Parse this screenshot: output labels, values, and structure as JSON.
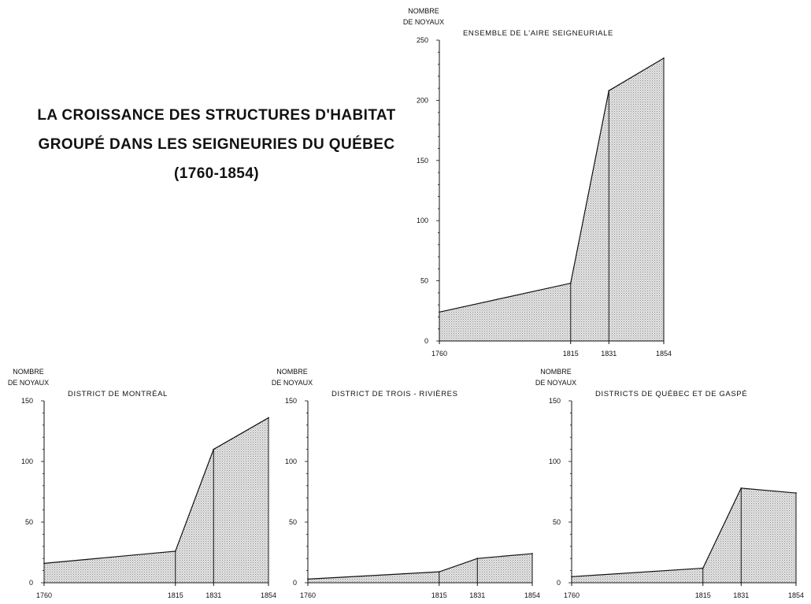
{
  "title": {
    "line1": "LA CROISSANCE DES STRUCTURES D'HABITAT",
    "line2": "GROUPÉ DANS LES SEIGNEURIES DU QUÉBEC",
    "line3": "(1760-1854)"
  },
  "chart_data": [
    {
      "type": "area",
      "title": "ENSEMBLE DE L'AIRE SEIGNEURIALE",
      "ylabel_line1": "NOMBRE",
      "ylabel_line2": "DE NOYAUX",
      "x": [
        1760,
        1815,
        1831,
        1854
      ],
      "values": [
        24,
        48,
        208,
        235
      ],
      "ylim": [
        0,
        250
      ],
      "yticks": [
        0,
        50,
        100,
        150,
        200,
        250
      ],
      "fill": "#cfcfcf",
      "line_color": "#111111"
    },
    {
      "type": "area",
      "title": "DISTRICT DE MONTRÉAL",
      "ylabel_line1": "NOMBRE",
      "ylabel_line2": "DE NOYAUX",
      "x": [
        1760,
        1815,
        1831,
        1854
      ],
      "values": [
        16,
        26,
        110,
        136
      ],
      "ylim": [
        0,
        150
      ],
      "yticks": [
        0,
        50,
        100,
        150
      ],
      "fill": "#cfcfcf",
      "line_color": "#111111"
    },
    {
      "type": "area",
      "title": "DISTRICT DE TROIS - RIVIÈRES",
      "ylabel_line1": "NOMBRE",
      "ylabel_line2": "DE NOYAUX",
      "x": [
        1760,
        1815,
        1831,
        1854
      ],
      "values": [
        3,
        9,
        20,
        24
      ],
      "ylim": [
        0,
        150
      ],
      "yticks": [
        0,
        50,
        100,
        150
      ],
      "fill": "#cfcfcf",
      "line_color": "#111111"
    },
    {
      "type": "area",
      "title": "DISTRICTS DE QUÉBEC ET DE GASPÉ",
      "ylabel_line1": "NOMBRE",
      "ylabel_line2": "DE NOYAUX",
      "x": [
        1760,
        1815,
        1831,
        1854
      ],
      "values": [
        5,
        12,
        78,
        74
      ],
      "ylim": [
        0,
        150
      ],
      "yticks": [
        0,
        50,
        100,
        150
      ],
      "fill": "#cfcfcf",
      "line_color": "#111111"
    }
  ]
}
